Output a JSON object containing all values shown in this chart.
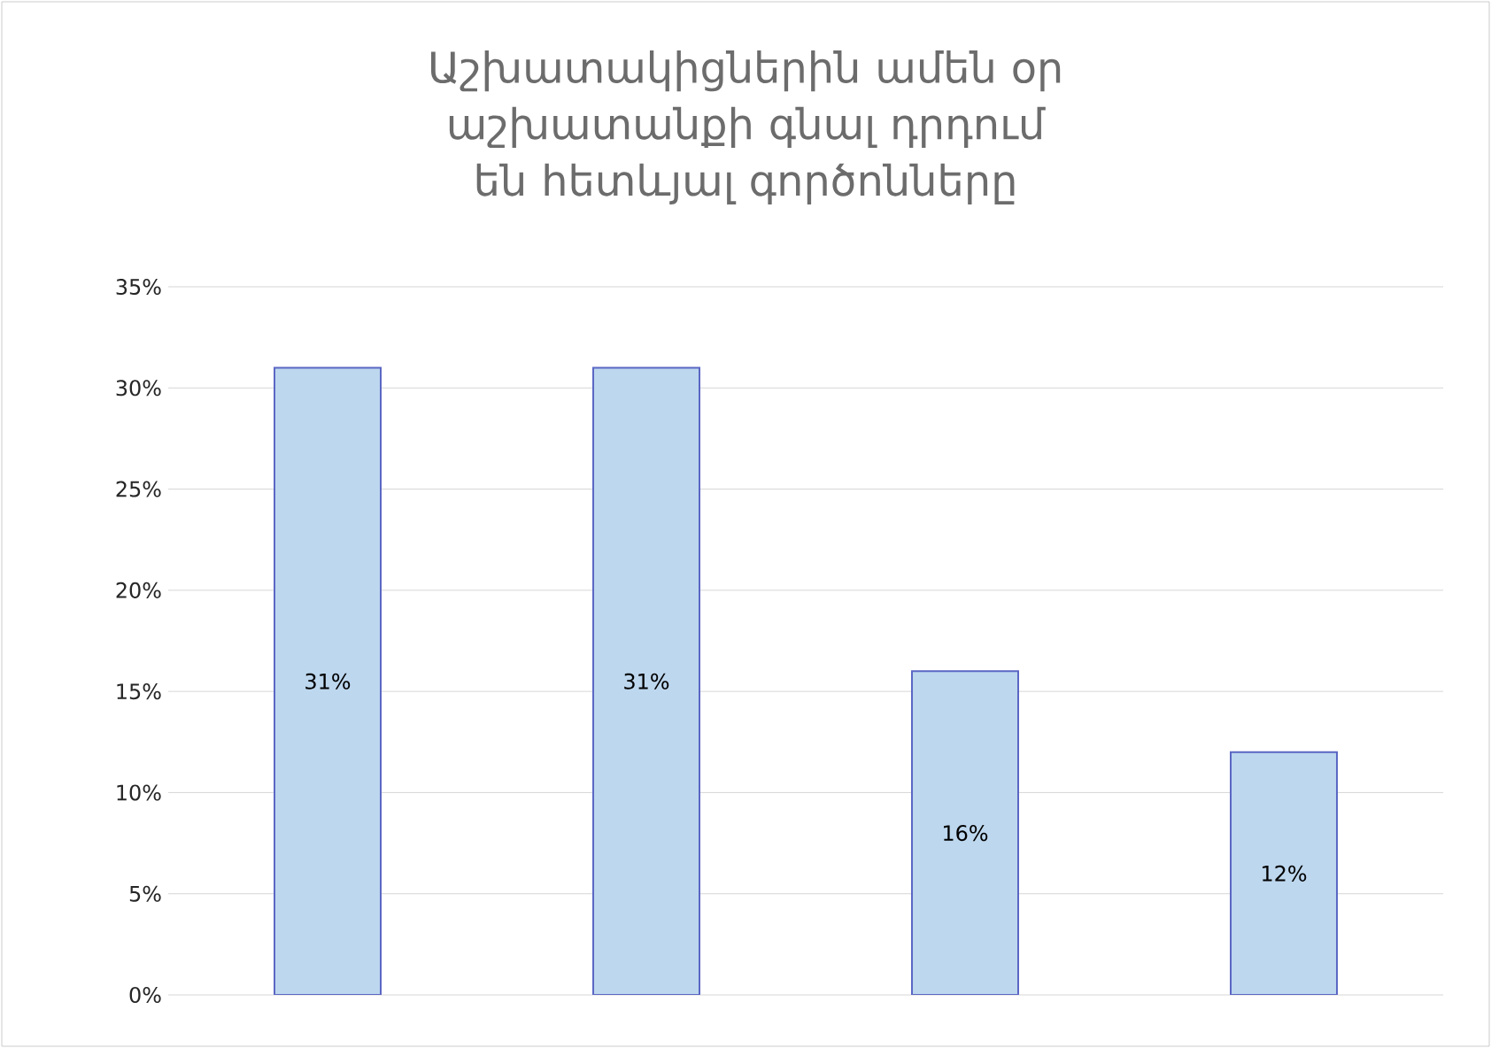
{
  "chart_data": {
    "type": "bar",
    "title": "Աշխատակիցներին ամեն օր աշխատանքի գնալ դրդում են հետևյալ գործոնները",
    "categories": [
      null,
      null,
      null,
      null
    ],
    "values": [
      31,
      31,
      16,
      12
    ],
    "value_labels": [
      "31%",
      "31%",
      "16%",
      "12%"
    ],
    "color": "#bdd7ee",
    "ylim": [
      0,
      35
    ],
    "yticks": [
      {
        "value": 0,
        "label": "0%"
      },
      {
        "value": 5,
        "label": "5%"
      },
      {
        "value": 10,
        "label": "10%"
      },
      {
        "value": 15,
        "label": "15%"
      },
      {
        "value": 20,
        "label": "20%"
      },
      {
        "value": 25,
        "label": "25%"
      },
      {
        "value": 30,
        "label": "30%"
      },
      {
        "value": 35,
        "label": "35%"
      }
    ],
    "grid": "y"
  }
}
